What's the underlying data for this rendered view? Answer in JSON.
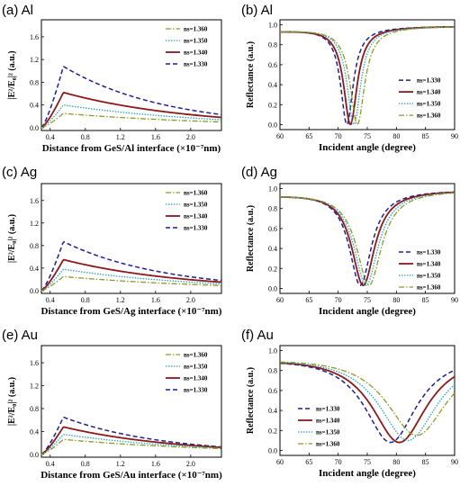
{
  "colors": {
    "s1330": "#1f1f8f",
    "s1340": "#8b1a1a",
    "s1350": "#2ba3b8",
    "s1360": "#8a9a2a"
  },
  "chart_data": [
    {
      "panel_label": "(a) Al",
      "type": "line",
      "xlabel": "Distance from GeS/Al interface (×10⁻⁷nm)",
      "ylabel": "|E²/E₀|² (a.u.)",
      "xlim": [
        0.3,
        2.35
      ],
      "ylim": [
        -0.05,
        1.9
      ],
      "xticks": [
        "0.4",
        "0.8",
        "1.2",
        "1.6",
        "2.0"
      ],
      "yticks": [
        "0.0",
        "0.4",
        "0.8",
        "1.2",
        "1.6"
      ],
      "legend_position": "top-right",
      "legend_order": [
        3,
        2,
        1,
        0
      ],
      "series": [
        {
          "name": "ns=1.330",
          "peak_x": 0.55,
          "peak": 1.08,
          "end": 0.23
        },
        {
          "name": "ns=1.340",
          "peak_x": 0.55,
          "peak": 0.62,
          "end": 0.18
        },
        {
          "name": "ns=1.350",
          "peak_x": 0.55,
          "peak": 0.4,
          "end": 0.14
        },
        {
          "name": "ns=1.360",
          "peak_x": 0.55,
          "peak": 0.25,
          "end": 0.1
        }
      ]
    },
    {
      "panel_label": "(b) Al",
      "type": "line",
      "xlabel": "Incident angle (degree)",
      "ylabel": "Reflectance (a.u.)",
      "xlim": [
        60,
        90
      ],
      "ylim": [
        -0.05,
        1.05
      ],
      "xticks": [
        "60",
        "65",
        "70",
        "75",
        "80",
        "85",
        "90"
      ],
      "yticks": [
        "0.0",
        "0.2",
        "0.4",
        "0.6",
        "0.8",
        "1.0"
      ],
      "legend_position": "center-right",
      "legend_order": [
        0,
        1,
        2,
        3
      ],
      "series": [
        {
          "name": "ns=1.330",
          "dip_x": 71.5,
          "min": 0.0,
          "width": 1.3
        },
        {
          "name": "ns=1.340",
          "dip_x": 72.1,
          "min": 0.0,
          "width": 1.4
        },
        {
          "name": "ns=1.350",
          "dip_x": 72.7,
          "min": 0.0,
          "width": 1.4
        },
        {
          "name": "ns=1.360",
          "dip_x": 73.3,
          "min": 0.0,
          "width": 1.5
        }
      ]
    },
    {
      "panel_label": "(c) Ag",
      "type": "line",
      "xlabel": "Distance from GeS/Ag interface (×10⁻⁷nm)",
      "ylabel": "|E²/E₀|² (a.u.)",
      "xlim": [
        0.3,
        2.35
      ],
      "ylim": [
        -0.05,
        1.9
      ],
      "xticks": [
        "0.4",
        "0.8",
        "1.2",
        "1.6",
        "2.0"
      ],
      "yticks": [
        "0.0",
        "0.4",
        "0.8",
        "1.2",
        "1.6"
      ],
      "legend_position": "top-right",
      "legend_order": [
        3,
        2,
        1,
        0
      ],
      "series": [
        {
          "name": "ns=1.330",
          "peak_x": 0.55,
          "peak": 0.87,
          "end": 0.18
        },
        {
          "name": "ns=1.340",
          "peak_x": 0.55,
          "peak": 0.55,
          "end": 0.15
        },
        {
          "name": "ns=1.350",
          "peak_x": 0.55,
          "peak": 0.38,
          "end": 0.12
        },
        {
          "name": "ns=1.360",
          "peak_x": 0.55,
          "peak": 0.25,
          "end": 0.09
        }
      ]
    },
    {
      "panel_label": "(d) Ag",
      "type": "line",
      "xlabel": "Incident angle (degree)",
      "ylabel": "Reflectance (a.u.)",
      "xlim": [
        60,
        90
      ],
      "ylim": [
        -0.05,
        1.05
      ],
      "xticks": [
        "60",
        "65",
        "70",
        "75",
        "80",
        "85",
        "90"
      ],
      "yticks": [
        "0.0",
        "0.2",
        "0.4",
        "0.6",
        "0.8",
        "1.0"
      ],
      "legend_position": "bottom-right",
      "legend_order": [
        0,
        1,
        2,
        3
      ],
      "series": [
        {
          "name": "ns=1.330",
          "dip_x": 73.8,
          "min": 0.03,
          "width": 2.3
        },
        {
          "name": "ns=1.340",
          "dip_x": 74.3,
          "min": 0.03,
          "width": 2.4
        },
        {
          "name": "ns=1.350",
          "dip_x": 74.8,
          "min": 0.03,
          "width": 2.5
        },
        {
          "name": "ns=1.360",
          "dip_x": 75.3,
          "min": 0.03,
          "width": 2.6
        }
      ]
    },
    {
      "panel_label": "(e) Au",
      "type": "line",
      "xlabel": "Distance from GeS/Au interface (×10⁻⁷nm)",
      "ylabel": "|E²/E₀|² (a.u.)",
      "xlim": [
        0.3,
        2.35
      ],
      "ylim": [
        -0.05,
        1.9
      ],
      "xticks": [
        "0.4",
        "0.8",
        "1.2",
        "1.6",
        "2.0"
      ],
      "yticks": [
        "0.0",
        "0.4",
        "0.8",
        "1.2",
        "1.6"
      ],
      "legend_position": "top-right",
      "legend_order": [
        3,
        2,
        1,
        0
      ],
      "series": [
        {
          "name": "ns=1.330",
          "peak_x": 0.55,
          "peak": 0.65,
          "end": 0.13
        },
        {
          "name": "ns=1.340",
          "peak_x": 0.55,
          "peak": 0.48,
          "end": 0.12
        },
        {
          "name": "ns=1.350",
          "peak_x": 0.55,
          "peak": 0.35,
          "end": 0.11
        },
        {
          "name": "ns=1.360",
          "peak_x": 0.55,
          "peak": 0.26,
          "end": 0.1
        }
      ]
    },
    {
      "panel_label": "(f) Au",
      "type": "line",
      "xlabel": "Incident angle (degree)",
      "ylabel": "Reflectance (a.u.)",
      "xlim": [
        60,
        90
      ],
      "ylim": [
        -0.05,
        1.05
      ],
      "xticks": [
        "60",
        "65",
        "70",
        "75",
        "80",
        "85",
        "90"
      ],
      "yticks": [
        "0.0",
        "0.2",
        "0.4",
        "0.6",
        "0.8",
        "1.0"
      ],
      "legend_position": "bottom-left",
      "legend_order": [
        0,
        1,
        2,
        3
      ],
      "series": [
        {
          "name": "ns=1.330",
          "dip_x": 79.0,
          "min": 0.08,
          "width": 5.5
        },
        {
          "name": "ns=1.340",
          "dip_x": 80.5,
          "min": 0.08,
          "width": 5.8
        },
        {
          "name": "ns=1.350",
          "dip_x": 82.0,
          "min": 0.1,
          "width": 6.1
        },
        {
          "name": "ns=1.360",
          "dip_x": 83.5,
          "min": 0.15,
          "width": 6.4
        }
      ]
    }
  ]
}
